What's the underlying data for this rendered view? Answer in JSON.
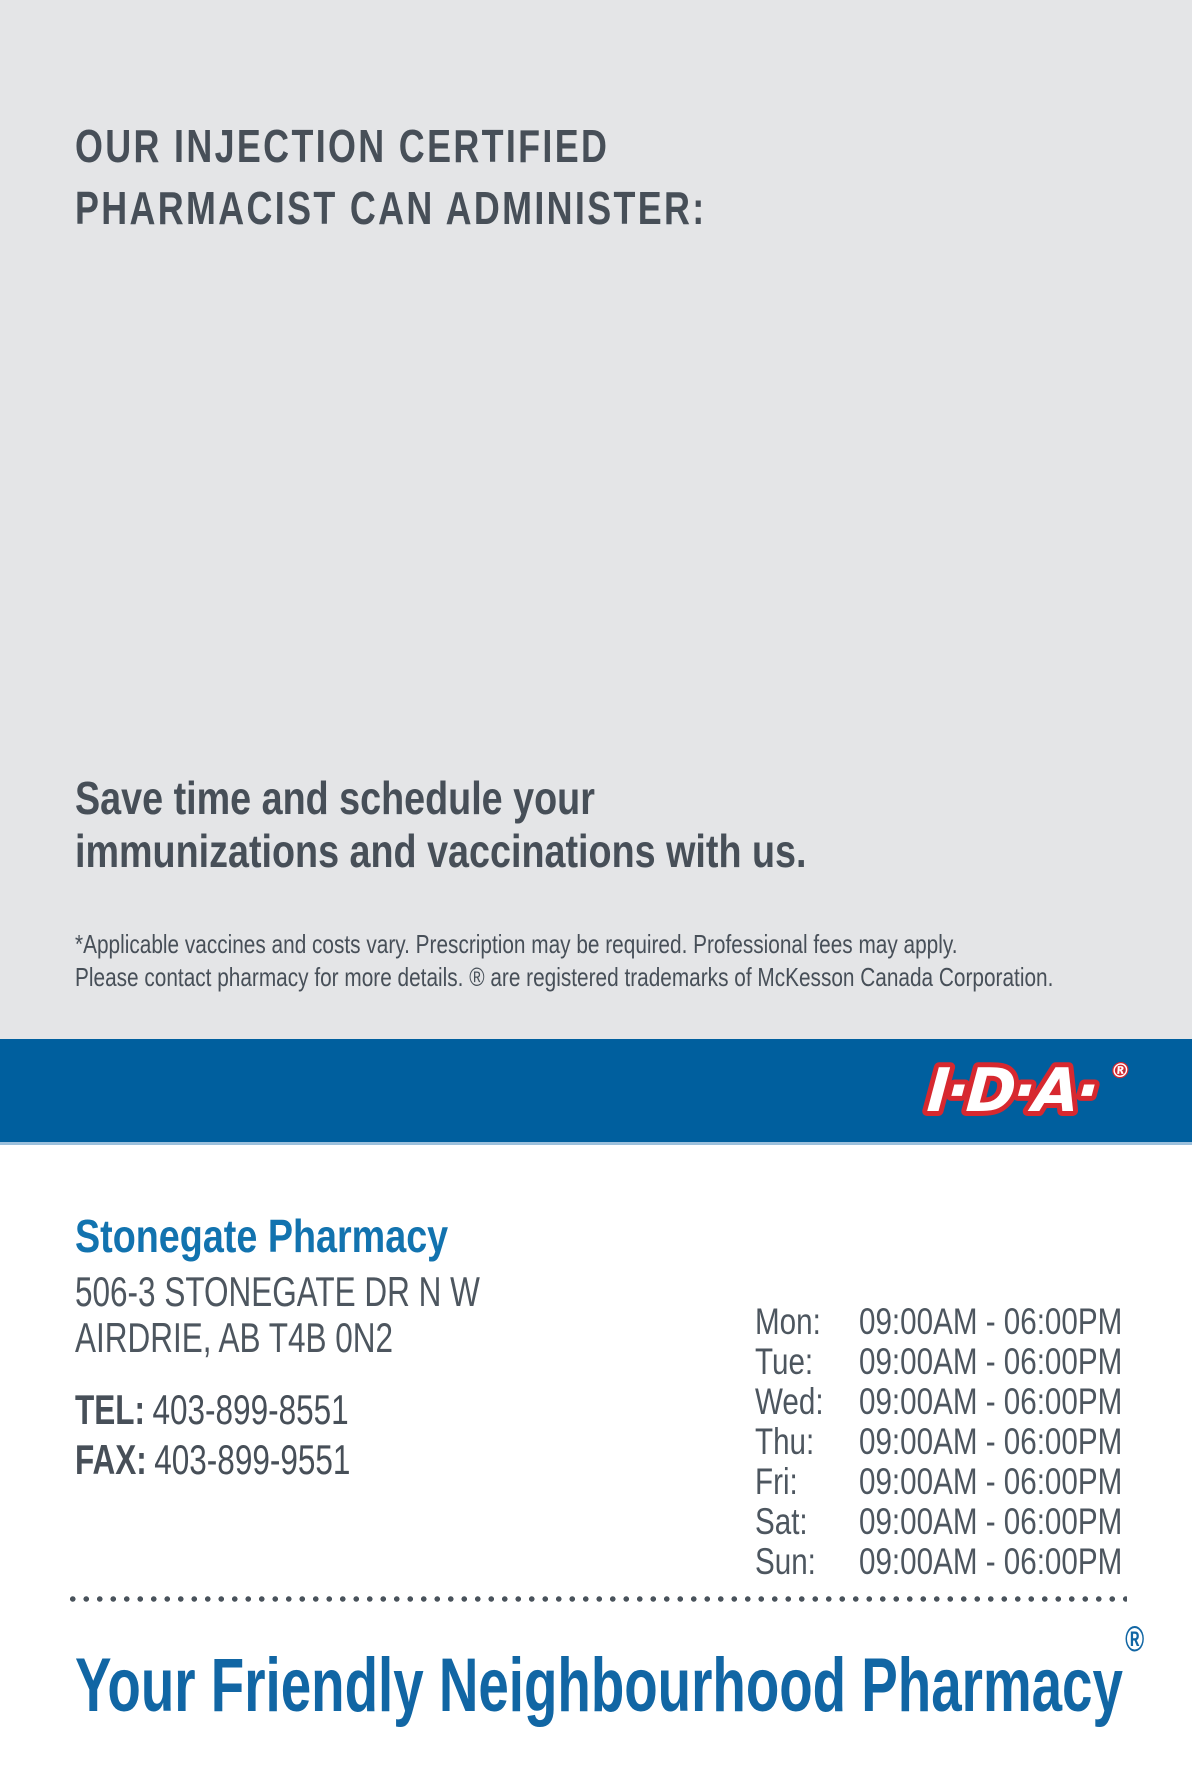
{
  "header": {
    "line1": "OUR INJECTION CERTIFIED",
    "line2": "PHARMACIST CAN ADMINISTER:"
  },
  "subheading": {
    "line1": "Save time and schedule your",
    "line2": "immunizations and vaccinations with us."
  },
  "disclaimer": {
    "line1": "*Applicable vaccines and costs vary. Prescription may be required. Professional fees may apply.",
    "line2": "Please contact pharmacy for more details. ® are registered trademarks of McKesson Canada Corporation."
  },
  "brand": {
    "logo_text": "I·D·A·",
    "logo_reg": "®",
    "colors": {
      "background_gray": "#e4e5e7",
      "text_slate": "#474f58",
      "band_blue": "#005f9e",
      "band_border_light_blue": "#9cc0dc",
      "logo_red": "#d7282f",
      "logo_white": "#ffffff",
      "pharmacy_name_blue": "#1273af",
      "tagline_blue": "#1166a4"
    }
  },
  "pharmacy": {
    "name": "Stonegate Pharmacy",
    "address_line1": "506-3 STONEGATE DR N W",
    "address_line2": "AIRDRIE, AB T4B 0N2",
    "tel_label": "TEL:",
    "tel": "403-899-8551",
    "fax_label": "FAX:",
    "fax": "403-899-9551"
  },
  "hours": {
    "rows": [
      {
        "day": "Mon:",
        "time": "09:00AM - 06:00PM"
      },
      {
        "day": "Tue:",
        "time": "09:00AM - 06:00PM"
      },
      {
        "day": "Wed:",
        "time": "09:00AM - 06:00PM"
      },
      {
        "day": "Thu:",
        "time": "09:00AM - 06:00PM"
      },
      {
        "day": "Fri:",
        "time": "09:00AM - 06:00PM"
      },
      {
        "day": "Sat:",
        "time": "09:00AM - 06:00PM"
      },
      {
        "day": "Sun:",
        "time": "09:00AM - 06:00PM"
      }
    ]
  },
  "footer": {
    "tagline": "Your Friendly Neighbourhood Pharmacy",
    "registered_mark": "®"
  }
}
